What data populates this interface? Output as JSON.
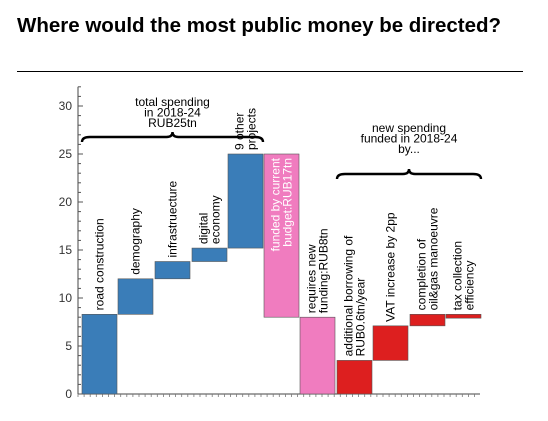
{
  "page": {
    "headline": "Where would the most public money be directed?"
  },
  "chart_data": {
    "type": "bar",
    "subtype": "waterfall",
    "ylim": [
      0,
      32
    ],
    "yticks": [
      0,
      5,
      10,
      15,
      20,
      25,
      30
    ],
    "grid": false,
    "xlabel": "",
    "ylabel": "",
    "bars": [
      {
        "label": [
          "road construction"
        ],
        "base": 0,
        "top": 8.3,
        "color": "#3a7db8",
        "label_color": "#000000",
        "label_inside": false
      },
      {
        "label": [
          "demography"
        ],
        "base": 8.3,
        "top": 12,
        "color": "#3a7db8",
        "label_color": "#000000",
        "label_inside": false
      },
      {
        "label": [
          "infrastruecture"
        ],
        "base": 12,
        "top": 13.8,
        "color": "#3a7db8",
        "label_color": "#000000",
        "label_inside": false
      },
      {
        "label": [
          "digital",
          "economy"
        ],
        "base": 13.8,
        "top": 15.2,
        "color": "#3a7db8",
        "label_color": "#000000",
        "label_inside": false
      },
      {
        "label": [
          "9 other",
          "projects"
        ],
        "base": 15.2,
        "top": 25,
        "color": "#3a7db8",
        "label_color": "#000000",
        "label_inside": false
      },
      {
        "label": [
          "funded by current",
          "budget:RUB17tn"
        ],
        "base": 8,
        "top": 25,
        "color": "#f07cbf",
        "label_color": "#ffffff",
        "label_inside": true
      },
      {
        "label": [
          "requires new",
          "funding:RUB8tn"
        ],
        "base": 0,
        "top": 8,
        "color": "#f07cbf",
        "label_color": "#000000",
        "label_inside": false
      },
      {
        "label": [
          "additional borrowing of",
          "RUB0.6tn/year"
        ],
        "base": 0,
        "top": 3.5,
        "color": "#dd1f1f",
        "label_color": "#000000",
        "label_inside": false
      },
      {
        "label": [
          "VAT increase by 2pp"
        ],
        "base": 3.5,
        "top": 7.1,
        "color": "#dd1f1f",
        "label_color": "#000000",
        "label_inside": false
      },
      {
        "label": [
          "completion of",
          "oil&gas manoeuvre"
        ],
        "base": 7.1,
        "top": 8.3,
        "color": "#dd1f1f",
        "label_color": "#000000",
        "label_inside": false
      },
      {
        "label": [
          "tax collection",
          "efficiency"
        ],
        "base": 7.9,
        "top": 8.3,
        "color": "#dd1f1f",
        "label_color": "#000000",
        "label_inside": false
      }
    ],
    "annotations": [
      {
        "lines": [
          "total spending",
          "in 2018-24",
          "RUB25tn"
        ],
        "spans_bars": [
          0,
          4
        ]
      },
      {
        "lines": [
          "new spending",
          "funded in 2018-24",
          "by..."
        ],
        "spans_bars": [
          7,
          10
        ]
      }
    ]
  }
}
